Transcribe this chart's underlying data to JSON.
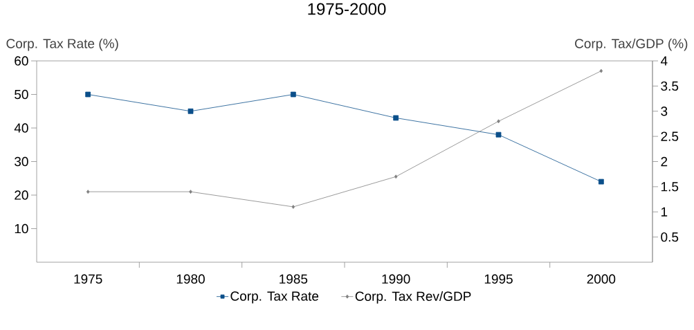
{
  "chart_data": {
    "type": "line",
    "title": "1975-2000",
    "ylabel": "Corp. Tax Rate (%)",
    "y2label": "Corp. Tax/GDP (%)",
    "categories": [
      "1975",
      "1980",
      "1985",
      "1990",
      "1995",
      "2000"
    ],
    "series": [
      {
        "name": "Corp. Tax Rate",
        "color": "#0b4f8a",
        "marker": "square",
        "values": [
          50,
          45,
          50,
          43,
          38,
          24
        ]
      },
      {
        "name": "Corp. Tax Rev/GDP",
        "color": "#808080",
        "marker": "diamond",
        "axis": "y2",
        "values": [
          1.4,
          1.4,
          1.1,
          1.7,
          2.8,
          3.8
        ]
      }
    ],
    "ylim": [
      0,
      60
    ],
    "yticks": [
      10,
      20,
      30,
      40,
      50,
      60
    ],
    "y2lim": [
      0,
      4
    ],
    "y2ticks": [
      0.5,
      1,
      1.5,
      2,
      2.5,
      3,
      3.5,
      4
    ],
    "legend": "bottom",
    "grid": false
  }
}
